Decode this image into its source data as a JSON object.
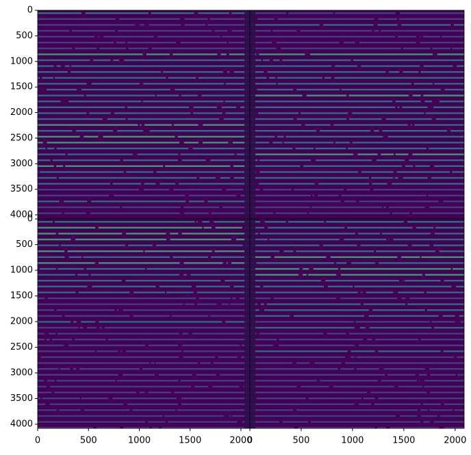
{
  "chart_data": [
    {
      "type": "image",
      "xlim": [
        0,
        2088
      ],
      "ylim": [
        4080,
        0
      ],
      "yticks": [
        0,
        500,
        1000,
        1500,
        2000,
        2500,
        3000,
        3500,
        4000
      ],
      "cmap": [
        "#440154",
        "#3e4a89",
        "#26828e",
        "#35b779"
      ]
    },
    {
      "type": "image",
      "xlim": [
        0,
        2088
      ],
      "ylim": [
        4080,
        0
      ],
      "cmap": [
        "#440154",
        "#3e4a89",
        "#26828e",
        "#35b779"
      ]
    },
    {
      "type": "image",
      "xlim": [
        0,
        2088
      ],
      "ylim": [
        4080,
        0
      ],
      "xticks": [
        0,
        500,
        1000,
        1500,
        2000
      ],
      "yticks": [
        0,
        500,
        1000,
        1500,
        2000,
        2500,
        3000,
        3500,
        4000
      ],
      "cmap": [
        "#440154",
        "#3e4a89",
        "#26828e",
        "#35b779"
      ]
    },
    {
      "type": "image",
      "xlim": [
        0,
        2088
      ],
      "ylim": [
        4080,
        0
      ],
      "xticks": [
        0,
        500,
        1000,
        1500,
        2000
      ],
      "cmap": [
        "#440154",
        "#3e4a89",
        "#26828e",
        "#35b779"
      ]
    }
  ]
}
